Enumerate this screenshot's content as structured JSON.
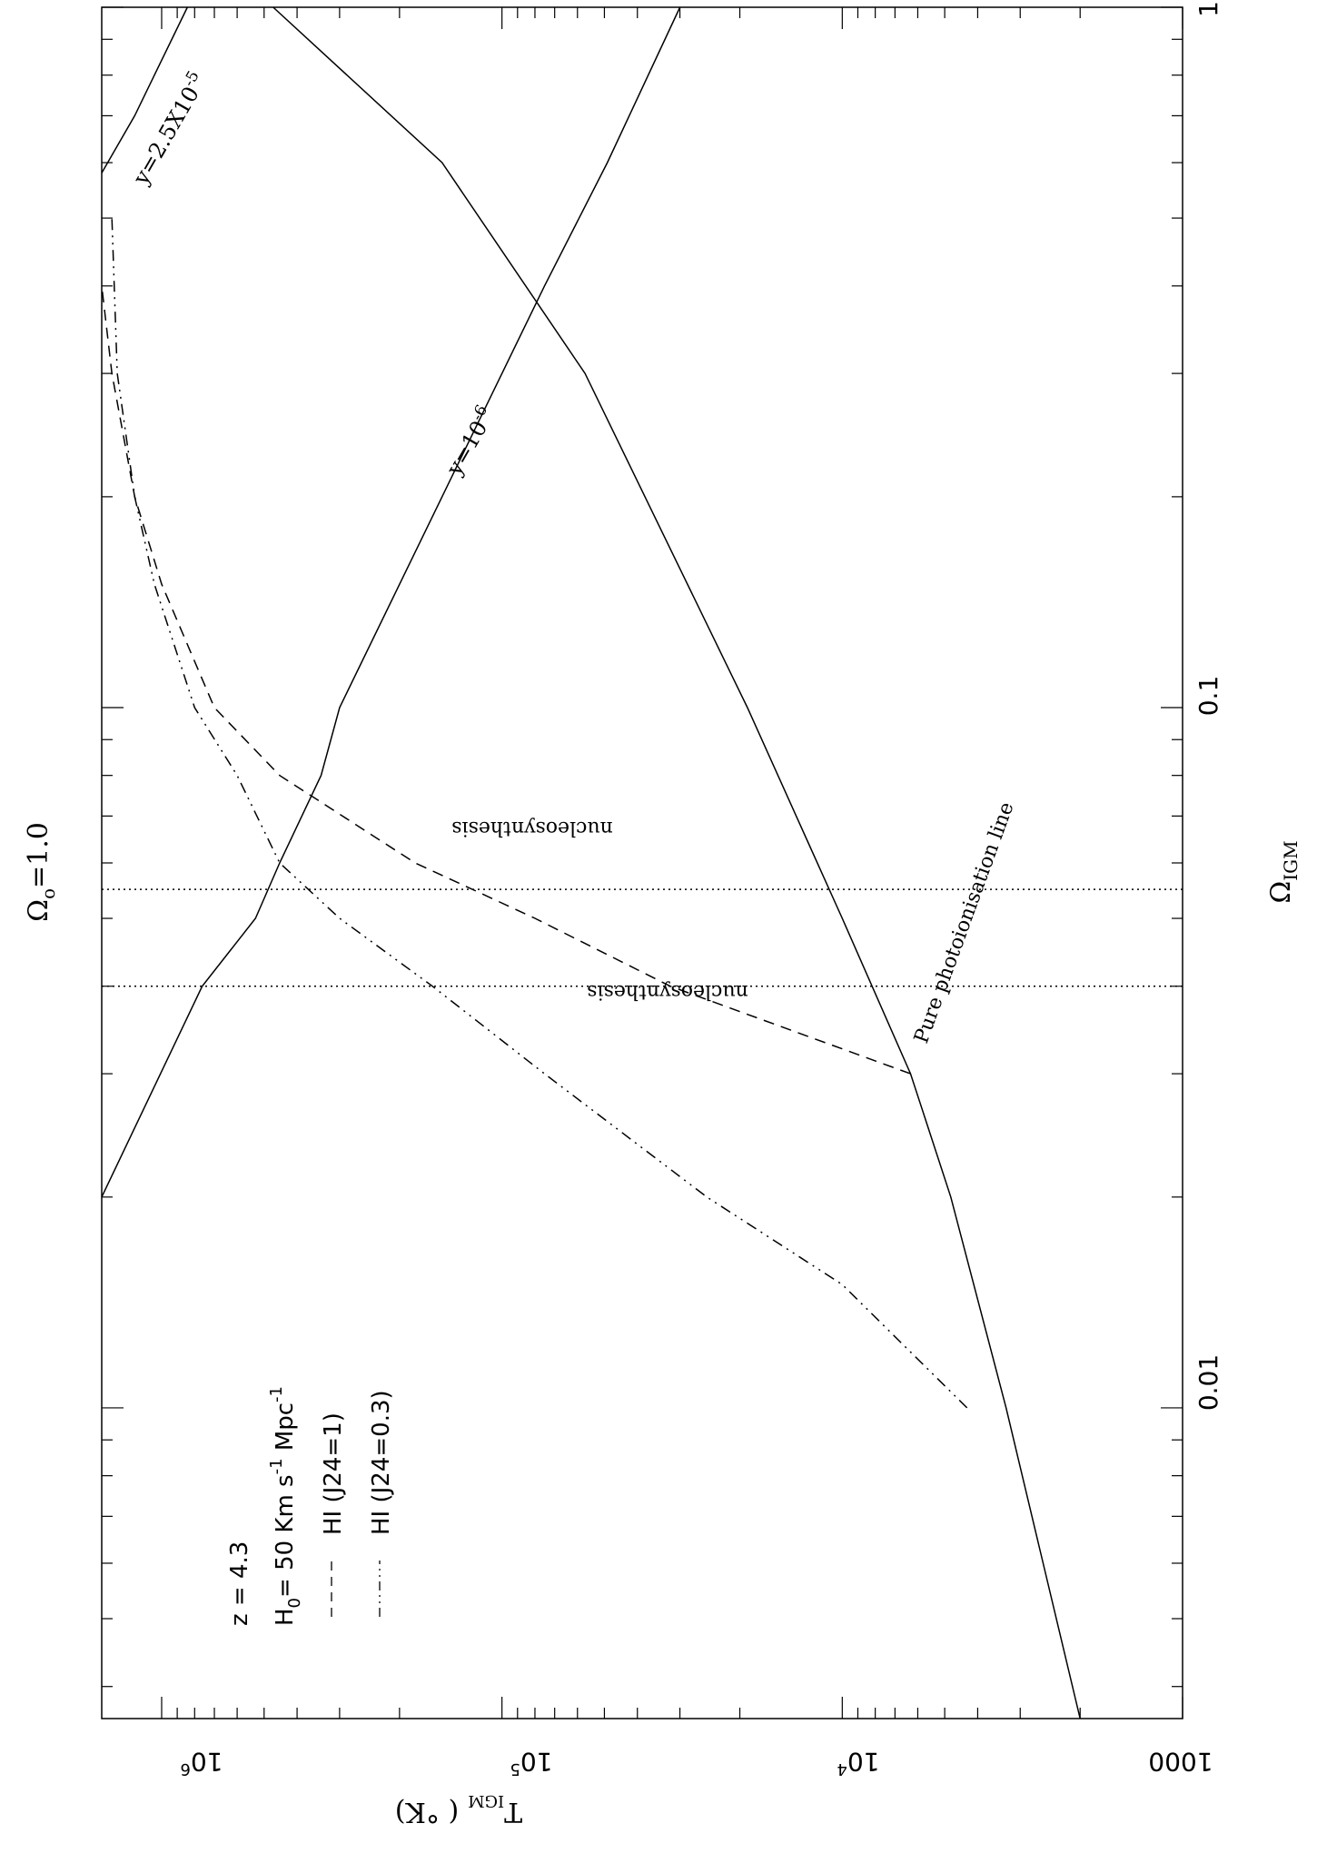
{
  "chart_data": {
    "type": "line",
    "title": "Ω_o=1.0",
    "title_main": "Ω",
    "title_sub": "o",
    "title_rest": "=1.0",
    "xlabel_main": "Ω",
    "xlabel_sub": "IGM",
    "ylabel_main": "T",
    "ylabel_sub": "IGM",
    "ylabel_rest": "( °K)",
    "x_scale": "log",
    "y_scale": "log",
    "xlim": [
      0.0036,
      1
    ],
    "ylim": [
      1000,
      1500000
    ],
    "x_ticks": [
      {
        "value": 0.01,
        "label": "0.01"
      },
      {
        "value": 0.1,
        "label": "0.1"
      },
      {
        "value": 1,
        "label": "1"
      }
    ],
    "y_ticks": [
      {
        "value": 1000,
        "label": "1000"
      },
      {
        "value": 10000,
        "label": "10",
        "exp": "4"
      },
      {
        "value": 100000,
        "label": "10",
        "exp": "5"
      },
      {
        "value": 1000000,
        "label": "10",
        "exp": "6"
      }
    ],
    "legend": {
      "placement": "bottom-left",
      "lines": [
        {
          "text": "z  =  4.3"
        },
        {
          "text_main": "H",
          "text_sub": "0",
          "text_rest": "=  50   Km s",
          "exp1": "-1",
          "text_tail": "  Mpc",
          "exp2": "-1"
        },
        {
          "text": "HI  (J24=1)",
          "style": "dashed"
        },
        {
          "text": "HI  (J24=0.3)",
          "style": "dash-dot-dot"
        }
      ]
    },
    "series": [
      {
        "name": "Pure photoionisation line",
        "style": "solid",
        "x": [
          0.0036,
          0.01,
          0.02,
          0.03,
          0.05,
          0.1,
          0.3,
          0.6,
          1.0
        ],
        "y": [
          2000,
          3300,
          4800,
          6300,
          10000,
          19000,
          57000,
          150000,
          470000
        ]
      },
      {
        "name": "HI  (J24=1)",
        "style": "dashed",
        "x": [
          0.03,
          0.04,
          0.05,
          0.06,
          0.08,
          0.1,
          0.15,
          0.2,
          0.3,
          0.4
        ],
        "y": [
          6300,
          32000,
          80000,
          180000,
          450000,
          700000,
          1000000,
          1200000,
          1400000,
          1500000
        ]
      },
      {
        "name": "HI  (J24=0.3)",
        "style": "dash-dot-dot",
        "x": [
          0.01,
          0.015,
          0.02,
          0.03,
          0.04,
          0.05,
          0.06,
          0.08,
          0.1,
          0.15,
          0.2,
          0.3,
          0.5
        ],
        "y": [
          4300,
          10000,
          25000,
          75000,
          160000,
          300000,
          450000,
          600000,
          800000,
          1050000,
          1200000,
          1350000,
          1400000
        ]
      },
      {
        "name": "y=10^-6",
        "style": "solid",
        "x": [
          0.02,
          0.04,
          0.05,
          0.06,
          0.08,
          0.1,
          0.2,
          0.4,
          0.6,
          1.0
        ],
        "y": [
          1500000,
          760000,
          530000,
          450000,
          340000,
          300000,
          150000,
          75000,
          49000,
          30000
        ]
      },
      {
        "name": "y=2.5X10^-5",
        "style": "solid",
        "x": [
          0.58,
          0.7,
          0.8,
          1.0
        ],
        "y": [
          1500000,
          1200000,
          1050000,
          840000
        ]
      }
    ],
    "vlines": [
      {
        "x": 0.04,
        "style": "dotted",
        "label": "nucleosynthesis"
      },
      {
        "x": 0.055,
        "style": "dotted",
        "label": "nucleosynthesis"
      }
    ],
    "annotations": [
      {
        "text": "Pure photoionisation line"
      },
      {
        "text_main": "y=10",
        "exp": "-6"
      },
      {
        "text_main": "y=2.5X10",
        "exp": "-5"
      }
    ]
  }
}
